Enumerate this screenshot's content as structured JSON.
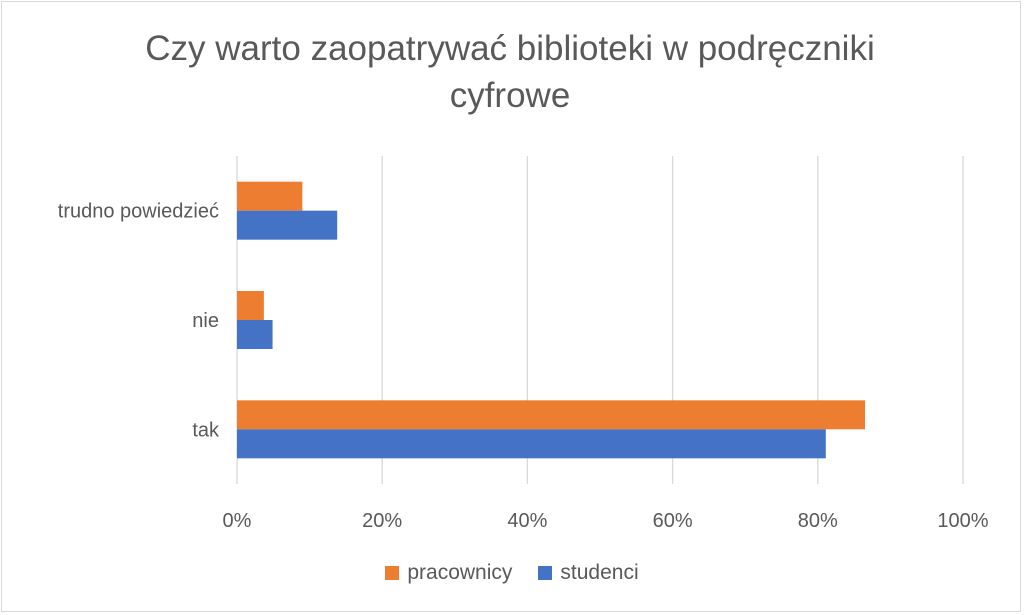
{
  "chart_data": {
    "type": "bar",
    "orientation": "horizontal",
    "title": "Czy warto zaopatrywać biblioteki w podręczniki cyfrowe",
    "categories": [
      "trudno powiedzieć",
      "nie",
      "tak"
    ],
    "series": [
      {
        "name": "pracownicy",
        "color": "#ED7D31",
        "values": [
          9,
          3.7,
          86.5
        ]
      },
      {
        "name": "studenci",
        "color": "#4472C4",
        "values": [
          13.8,
          4.9,
          81.1
        ]
      }
    ],
    "xlim": [
      0,
      100
    ],
    "x_ticks": [
      "0%",
      "20%",
      "40%",
      "60%",
      "80%",
      "100%"
    ],
    "grid": true,
    "legend": "bottom"
  }
}
